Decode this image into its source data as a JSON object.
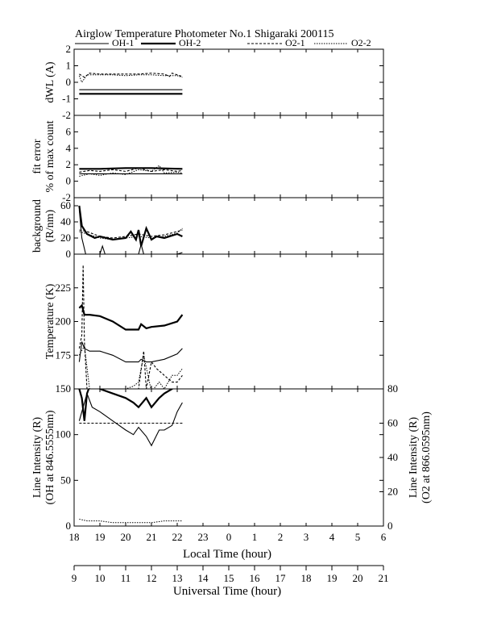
{
  "title": "Airglow Temperature Photometer No.1  Shigaraki  200115",
  "legend": [
    {
      "name": "OH-1",
      "style": "solid-thin"
    },
    {
      "name": "OH-2",
      "style": "solid-thick"
    },
    {
      "name": "O2-1",
      "style": "dashed"
    },
    {
      "name": "O2-2",
      "style": "dashed-fine"
    }
  ],
  "x_local": {
    "label": "Local Time (hour)",
    "ticks": [
      "18",
      "19",
      "20",
      "21",
      "22",
      "23",
      "0",
      "1",
      "2",
      "3",
      "4",
      "5",
      "6"
    ]
  },
  "x_ut": {
    "label": "Universal Time (hour)",
    "ticks": [
      "9",
      "10",
      "11",
      "12",
      "13",
      "14",
      "15",
      "16",
      "17",
      "18",
      "19",
      "20",
      "21"
    ]
  },
  "chart_data": [
    {
      "type": "line",
      "panel": "dwl",
      "ylabel": "dWL (A)",
      "ylim": [
        -2,
        2
      ],
      "yticks": [
        "-2",
        "-1",
        "0",
        "1",
        "2"
      ],
      "series": [
        {
          "name": "OH-1",
          "x": [
            18.2,
            22.2
          ],
          "y": [
            -0.45,
            -0.45
          ]
        },
        {
          "name": "OH-2",
          "x": [
            18.2,
            22.2
          ],
          "y": [
            -0.7,
            -0.7
          ]
        },
        {
          "name": "O2-1",
          "x": [
            18.2,
            18.4,
            18.6,
            19,
            19.5,
            20,
            20.5,
            21,
            21.5,
            21.7,
            21.8,
            22,
            22.2
          ],
          "y": [
            0.5,
            0.3,
            0.55,
            0.5,
            0.5,
            0.5,
            0.5,
            0.55,
            0.5,
            0.35,
            0.55,
            0.45,
            0.35
          ]
        },
        {
          "name": "O2-2",
          "x": [
            18.2,
            18.3,
            18.5,
            19,
            19.5,
            20,
            20.5,
            21,
            21.5,
            22,
            22.2
          ],
          "y": [
            0.4,
            0.0,
            0.45,
            0.45,
            0.45,
            0.4,
            0.45,
            0.45,
            0.4,
            0.4,
            0.3
          ]
        }
      ]
    },
    {
      "type": "line",
      "panel": "fit-error",
      "ylabel": "fit error",
      "ylabel2": "% of max count",
      "ylim": [
        -2,
        8
      ],
      "yticks": [
        "-2",
        "0",
        "2",
        "4",
        "6"
      ],
      "series": [
        {
          "name": "OH-1",
          "x": [
            18.2,
            19,
            20,
            21,
            22.2
          ],
          "y": [
            0.9,
            0.9,
            0.9,
            0.9,
            0.9
          ]
        },
        {
          "name": "OH-2",
          "x": [
            18.2,
            19,
            20,
            21,
            22.2
          ],
          "y": [
            1.5,
            1.5,
            1.6,
            1.6,
            1.5
          ]
        },
        {
          "name": "O2-1",
          "x": [
            18.2,
            18.6,
            19,
            19.5,
            20,
            20.5,
            21,
            21.5,
            22,
            22.2
          ],
          "y": [
            1.1,
            1.3,
            1.2,
            1.4,
            1.2,
            1.6,
            1.2,
            1.4,
            1.2,
            1.3
          ]
        },
        {
          "name": "O2-2",
          "x": [
            18.2,
            18.6,
            19,
            19.5,
            20,
            20.5,
            21,
            21.3,
            21.5,
            22,
            22.2
          ],
          "y": [
            0.6,
            0.9,
            0.7,
            1.0,
            0.8,
            1.4,
            1.2,
            1.9,
            1.0,
            1.1,
            1.0
          ]
        }
      ]
    },
    {
      "type": "line",
      "panel": "background",
      "ylabel": "background",
      "ylabel2": "(R/nm)",
      "ylim": [
        0,
        70
      ],
      "yticks": [
        "0",
        "20",
        "40",
        "60"
      ],
      "series": [
        {
          "name": "OH-1",
          "x": [
            18.2,
            18.3,
            18.45,
            18.6,
            19,
            19.1,
            19.2,
            19.5,
            20,
            20.5,
            20.6,
            20.7,
            20.8,
            21,
            22,
            22.2
          ],
          "y": [
            55,
            20,
            0,
            0,
            0,
            10,
            0,
            0,
            0,
            0,
            12,
            0,
            0,
            0,
            0,
            2
          ]
        },
        {
          "name": "OH-2",
          "x": [
            18.2,
            18.3,
            18.5,
            18.8,
            19,
            19.5,
            20,
            20.2,
            20.4,
            20.5,
            20.6,
            20.8,
            21,
            21.2,
            21.5,
            22,
            22.2
          ],
          "y": [
            60,
            35,
            25,
            20,
            22,
            18,
            20,
            28,
            18,
            30,
            10,
            32,
            18,
            22,
            20,
            25,
            22
          ]
        },
        {
          "name": "O2-1",
          "x": [
            18.2,
            18.5,
            19,
            19.5,
            20,
            20.5,
            21,
            21.5,
            22,
            22.2
          ],
          "y": [
            30,
            28,
            22,
            20,
            22,
            25,
            22,
            24,
            28,
            30
          ]
        },
        {
          "name": "O2-2",
          "x": [
            18.2,
            18.5,
            19,
            19.5,
            20,
            20.5,
            21,
            21.5,
            22,
            22.2
          ],
          "y": [
            28,
            25,
            20,
            18,
            20,
            22,
            20,
            22,
            26,
            32
          ]
        }
      ]
    },
    {
      "type": "line",
      "panel": "temperature",
      "ylabel": "Temperature (K)",
      "ylim": [
        150,
        250
      ],
      "yticks": [
        "175",
        "200",
        "225"
      ],
      "series": [
        {
          "name": "OH-1",
          "x": [
            18.2,
            18.3,
            18.4,
            18.6,
            19,
            19.5,
            20,
            20.5,
            20.6,
            20.8,
            21,
            21.5,
            22,
            22.2
          ],
          "y": [
            170,
            185,
            180,
            178,
            178,
            175,
            170,
            170,
            172,
            170,
            170,
            172,
            176,
            180
          ]
        },
        {
          "name": "OH-2",
          "x": [
            18.2,
            18.3,
            18.4,
            18.6,
            19,
            19.5,
            20,
            20.5,
            20.6,
            20.8,
            21,
            21.5,
            22,
            22.2
          ],
          "y": [
            210,
            212,
            205,
            205,
            204,
            200,
            194,
            194,
            198,
            195,
            196,
            197,
            200,
            205
          ]
        },
        {
          "name": "O2-1",
          "x": [
            18.2,
            18.3,
            18.35,
            18.4,
            18.5,
            19,
            19.5,
            20,
            20.3,
            20.5,
            20.7,
            20.8,
            21,
            21.2,
            21.5,
            21.8,
            22,
            22.2
          ],
          "y": [
            180,
            190,
            242,
            185,
            150,
            150,
            150,
            150,
            150,
            150,
            178,
            150,
            170,
            165,
            160,
            155,
            155,
            160
          ]
        },
        {
          "name": "O2-2",
          "x": [
            18.2,
            18.4,
            18.6,
            19,
            19.5,
            20,
            20.3,
            20.5,
            20.7,
            21,
            21.3,
            21.5,
            21.8,
            22,
            22.2
          ],
          "y": [
            175,
            182,
            150,
            150,
            150,
            150,
            152,
            155,
            175,
            148,
            155,
            150,
            160,
            160,
            165
          ]
        }
      ]
    },
    {
      "type": "line",
      "panel": "line-intensity",
      "ylabel": "Line Intensity (R)",
      "ylabel2": "(OH at 846.5555nm)",
      "ylabel_right": "Line Intensity (R)",
      "ylabel_right2": "(O2 at 866.0595nm)",
      "ylim": [
        0,
        150
      ],
      "yticks": [
        "0",
        "50",
        "100",
        "150"
      ],
      "ylim_right": [
        0,
        80
      ],
      "yticks_right": [
        "0",
        "20",
        "40",
        "60",
        "80"
      ],
      "series": [
        {
          "name": "OH-1",
          "axis": "left",
          "x": [
            18.2,
            18.3,
            18.5,
            18.7,
            19,
            19.5,
            20,
            20.3,
            20.5,
            20.8,
            21,
            21.3,
            21.5,
            21.8,
            22,
            22.2
          ],
          "y": [
            115,
            125,
            145,
            130,
            125,
            115,
            105,
            100,
            108,
            98,
            88,
            105,
            105,
            110,
            125,
            135
          ]
        },
        {
          "name": "OH-2",
          "axis": "left",
          "x": [
            18.2,
            18.3,
            18.4,
            18.5,
            18.7,
            19,
            19.5,
            20,
            20.3,
            20.5,
            20.8,
            21,
            21.3,
            21.5,
            21.8,
            22,
            22.2
          ],
          "y": [
            150,
            140,
            115,
            145,
            160,
            150,
            145,
            140,
            135,
            130,
            140,
            130,
            140,
            145,
            150,
            170,
            180
          ]
        },
        {
          "name": "O2-1",
          "axis": "right",
          "x": [
            18.2,
            19,
            20,
            21,
            22.2
          ],
          "y": [
            60,
            60,
            60,
            60,
            60
          ]
        },
        {
          "name": "O2-2",
          "axis": "right",
          "x": [
            18.2,
            18.5,
            19,
            19.5,
            20,
            20.5,
            21,
            21.5,
            22,
            22.2
          ],
          "y": [
            4,
            3,
            3,
            2,
            2,
            2,
            2,
            3,
            3,
            3
          ]
        }
      ]
    }
  ]
}
